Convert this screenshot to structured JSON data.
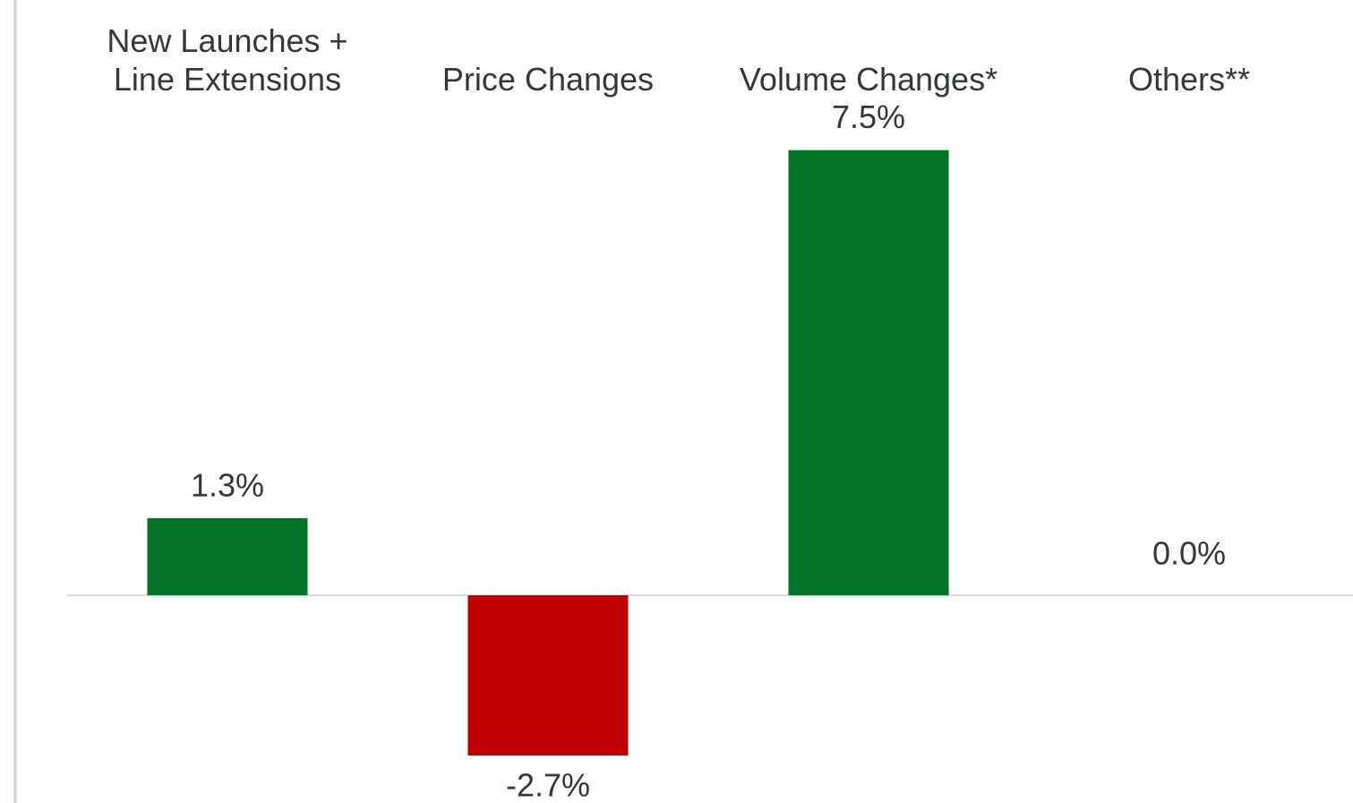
{
  "chart_data": {
    "type": "bar",
    "categories": [
      "New Launches +\nLine Extensions",
      "Price Changes",
      "Volume Changes*",
      "Others**"
    ],
    "values": [
      1.3,
      -2.7,
      7.5,
      0.0
    ],
    "value_labels": [
      "1.3%",
      "-2.7%",
      "7.5%",
      "0.0%"
    ],
    "colors": [
      "#037328",
      "#c00000",
      "#037328",
      "#037328"
    ],
    "ylim": [
      -3.5,
      8.5
    ]
  }
}
